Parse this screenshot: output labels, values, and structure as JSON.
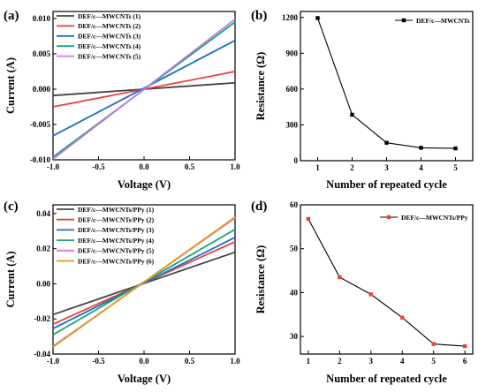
{
  "panel_labels": [
    "(a)",
    "(b)",
    "(c)",
    "(d)"
  ],
  "chart_data": [
    {
      "type": "line",
      "panel": "(a)",
      "xlabel": "Voltage (V)",
      "ylabel": "Current (A)",
      "xlim": [
        -1.0,
        1.0
      ],
      "ylim": [
        -0.01,
        0.011
      ],
      "xticks": [
        "-1.0",
        "-0.5",
        "0.0",
        "0.5",
        "1.0"
      ],
      "yticks": [
        "-0.010",
        "-0.005",
        "0.000",
        "0.005",
        "0.010"
      ],
      "legend_position": "top-left",
      "series": [
        {
          "name": "DEF/c—MWCNTs (1)",
          "color": "#444444",
          "x": [
            -1.0,
            1.0
          ],
          "y": [
            -0.0009,
            0.0009
          ]
        },
        {
          "name": "DEF/c—MWCNTs (2)",
          "color": "#e8413a",
          "x": [
            -1.0,
            1.0
          ],
          "y": [
            -0.0025,
            0.0025
          ]
        },
        {
          "name": "DEF/c—MWCNTs (3)",
          "color": "#1f6fc0",
          "x": [
            -1.0,
            1.0
          ],
          "y": [
            -0.0066,
            0.0069
          ]
        },
        {
          "name": "DEF/c—MWCNTs (4)",
          "color": "#1aa37a",
          "x": [
            -1.0,
            1.0
          ],
          "y": [
            -0.0096,
            0.0095
          ]
        },
        {
          "name": "DEF/c—MWCNTs (5)",
          "color": "#c77be0",
          "x": [
            -1.0,
            1.0
          ],
          "y": [
            -0.0099,
            0.0099
          ]
        }
      ]
    },
    {
      "type": "line",
      "panel": "(b)",
      "xlabel": "Number of repeated cycle",
      "ylabel": "Resistance (Ω)",
      "xlim": [
        0.5,
        5.5
      ],
      "ylim": [
        0,
        1250
      ],
      "xticks": [
        "1",
        "2",
        "3",
        "4",
        "5"
      ],
      "yticks": [
        "0",
        "300",
        "600",
        "900",
        "1200"
      ],
      "legend_position": "top-right",
      "series": [
        {
          "name": "DEF/c—MWCNTs",
          "color": "#000000",
          "marker": "square",
          "x": [
            1,
            2,
            3,
            4,
            5
          ],
          "y": [
            1195,
            385,
            150,
            108,
            103
          ]
        }
      ]
    },
    {
      "type": "line",
      "panel": "(c)",
      "xlabel": "Voltage (V)",
      "ylabel": "Current (A)",
      "xlim": [
        -1.0,
        1.0
      ],
      "ylim": [
        -0.04,
        0.045
      ],
      "xticks": [
        "-1.0",
        "-0.5",
        "0.0",
        "0.5",
        "1.0"
      ],
      "yticks": [
        "-0.04",
        "-0.02",
        "0.00",
        "0.02",
        "0.04"
      ],
      "legend_position": "top-left",
      "series": [
        {
          "name": "DEF/c—MWCNTs/PPy (1)",
          "color": "#444444",
          "x": [
            -1.0,
            1.0
          ],
          "y": [
            -0.0175,
            0.018
          ]
        },
        {
          "name": "DEF/c—MWCNTs/PPy (2)",
          "color": "#e8413a",
          "x": [
            -1.0,
            1.0
          ],
          "y": [
            -0.023,
            0.024
          ]
        },
        {
          "name": "DEF/c—MWCNTs/PPy (3)",
          "color": "#1f6fc0",
          "x": [
            -1.0,
            1.0
          ],
          "y": [
            -0.0255,
            0.0265
          ]
        },
        {
          "name": "DEF/c—MWCNTs/PPy (4)",
          "color": "#1aa37a",
          "x": [
            -1.0,
            1.0
          ],
          "y": [
            -0.029,
            0.031
          ]
        },
        {
          "name": "DEF/c—MWCNTs/PPy (5)",
          "color": "#c77be0",
          "x": [
            -1.0,
            1.0
          ],
          "y": [
            -0.0355,
            0.0375
          ]
        },
        {
          "name": "DEF/c—MWCNTs/PPy (6)",
          "color": "#e39a1c",
          "x": [
            -1.0,
            1.0
          ],
          "y": [
            -0.036,
            0.038
          ]
        }
      ]
    },
    {
      "type": "line",
      "panel": "(d)",
      "xlabel": "Number of repeated cycle",
      "ylabel": "Resistance (Ω)",
      "xlim": [
        0.75,
        6.25
      ],
      "ylim": [
        26,
        60
      ],
      "xticks": [
        "1",
        "2",
        "3",
        "4",
        "5",
        "6"
      ],
      "yticks": [
        "30",
        "40",
        "50",
        "60"
      ],
      "legend_position": "top-right",
      "series": [
        {
          "name": "DEF/c—MWCNTs/PPy",
          "color": "#000000",
          "marker_color": "#e8413a",
          "marker": "square",
          "x": [
            1,
            2,
            3,
            4,
            5,
            6
          ],
          "y": [
            56.8,
            43.5,
            39.6,
            34.3,
            28.3,
            27.8
          ]
        }
      ]
    }
  ]
}
